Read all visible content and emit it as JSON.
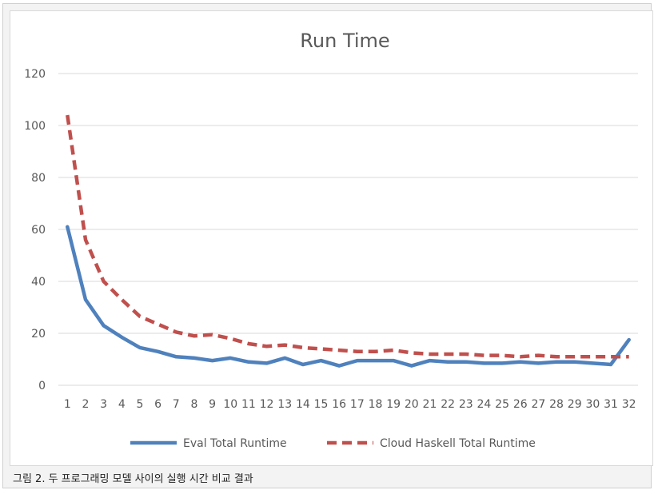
{
  "caption": "그림 2. 두 프로그래밍 모델 사이의 실행 시간 비교 결과",
  "colors": {
    "eval": "#4f81bd",
    "cloud": "#c0504d",
    "grid": "#d9d9d9",
    "text": "#595959"
  },
  "chart_data": {
    "type": "line",
    "title": "Run Time",
    "xlabel": "",
    "ylabel": "",
    "ylim": [
      0,
      120
    ],
    "yticks": [
      0,
      20,
      40,
      60,
      80,
      100,
      120
    ],
    "grid": true,
    "legend_position": "bottom",
    "x": [
      "1",
      "2",
      "3",
      "4",
      "5",
      "6",
      "7",
      "8",
      "9",
      "10",
      "11",
      "12",
      "13",
      "14",
      "15",
      "16",
      "17",
      "18",
      "19",
      "20",
      "21",
      "22",
      "23",
      "24",
      "25",
      "26",
      "27",
      "28",
      "29",
      "30",
      "31",
      "32"
    ],
    "series": [
      {
        "name": "Eval Total Runtime",
        "style": "solid",
        "values": [
          61,
          33,
          23,
          18.5,
          14.5,
          13,
          11,
          10.5,
          9.5,
          10.5,
          9,
          8.5,
          10.5,
          8,
          9.5,
          7.5,
          9.5,
          9.5,
          9.5,
          7.5,
          9.5,
          9,
          9,
          8.5,
          8.5,
          9,
          8.5,
          9,
          9,
          8.5,
          8,
          17.5
        ]
      },
      {
        "name": "Cloud Haskell Total Runtime",
        "style": "dashed",
        "values": [
          104,
          56,
          40,
          33,
          26.5,
          23.5,
          20.5,
          19,
          19.5,
          18,
          16,
          15,
          15.5,
          14.5,
          14,
          13.5,
          13,
          13,
          13.5,
          12.5,
          12,
          12,
          12,
          11.5,
          11.5,
          11,
          11.5,
          11,
          11,
          11,
          11,
          11
        ]
      }
    ]
  }
}
